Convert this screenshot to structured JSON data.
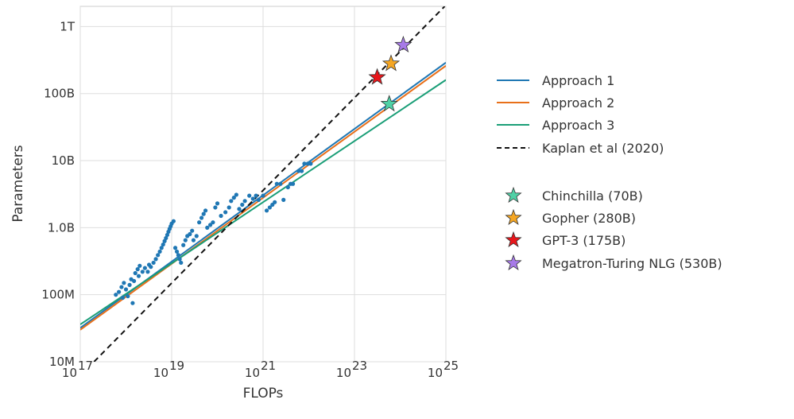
{
  "chart_data": {
    "type": "scatter",
    "xlabel": "FLOPs",
    "ylabel": "Parameters",
    "x_scale": "log",
    "y_scale": "log",
    "xlim": [
      1e+17,
      1e+25
    ],
    "ylim": [
      10000000.0,
      2000000000000.0
    ],
    "grid": true,
    "legend_placement": "right",
    "x_ticks": [
      {
        "value": 1e+17,
        "base": "10",
        "exp": "17"
      },
      {
        "value": 1e+19,
        "base": "10",
        "exp": "19"
      },
      {
        "value": 1e+21,
        "base": "10",
        "exp": "21"
      },
      {
        "value": 1e+23,
        "base": "10",
        "exp": "23"
      },
      {
        "value": 1e+25,
        "base": "10",
        "exp": "25"
      }
    ],
    "y_ticks": [
      {
        "value": 10000000.0,
        "label": "10M"
      },
      {
        "value": 100000000.0,
        "label": "100M"
      },
      {
        "value": 1000000000.0,
        "label": "1.0B"
      },
      {
        "value": 10000000000.0,
        "label": "10B"
      },
      {
        "value": 100000000000.0,
        "label": "100B"
      },
      {
        "value": 1000000000000.0,
        "label": "1T"
      }
    ],
    "lines": [
      {
        "name": "Approach 1",
        "color": "#1f77b4",
        "dash": false,
        "points": [
          [
            1e+17,
            32000000.0
          ],
          [
            1e+25,
            290000000000.0
          ]
        ]
      },
      {
        "name": "Approach 2",
        "color": "#e8701a",
        "dash": false,
        "points": [
          [
            1e+17,
            30000000.0
          ],
          [
            1e+25,
            260000000000.0
          ]
        ]
      },
      {
        "name": "Approach 3",
        "color": "#1a9e77",
        "dash": false,
        "points": [
          [
            1e+17,
            36000000.0
          ],
          [
            1e+25,
            160000000000.0
          ]
        ]
      },
      {
        "name": "Kaplan et al (2020)",
        "color": "#111111",
        "dash": true,
        "points": [
          [
            2e+17,
            10000000.0
          ],
          [
            9.4e+24,
            2000000000000.0
          ]
        ]
      }
    ],
    "points_color": "#1f77b4",
    "points": [
      [
        6e+17,
        100000000.0
      ],
      [
        7e+17,
        110000000.0
      ],
      [
        8e+17,
        130000000.0
      ],
      [
        8.5e+17,
        90000000.0
      ],
      [
        9e+17,
        150000000.0
      ],
      [
        1e+18,
        120000000.0
      ],
      [
        1.1e+18,
        95000000.0
      ],
      [
        1.2e+18,
        140000000.0
      ],
      [
        1.3e+18,
        170000000.0
      ],
      [
        1.4e+18,
        75000000.0
      ],
      [
        1.5e+18,
        160000000.0
      ],
      [
        1.6e+18,
        210000000.0
      ],
      [
        1.8e+18,
        240000000.0
      ],
      [
        1.9e+18,
        190000000.0
      ],
      [
        2e+18,
        270000000.0
      ],
      [
        2.3e+18,
        220000000.0
      ],
      [
        2.6e+18,
        250000000.0
      ],
      [
        3e+18,
        220000000.0
      ],
      [
        3.2e+18,
        280000000.0
      ],
      [
        3.5e+18,
        260000000.0
      ],
      [
        4e+18,
        300000000.0
      ],
      [
        4.5e+18,
        340000000.0
      ],
      [
        5e+18,
        390000000.0
      ],
      [
        5.5e+18,
        440000000.0
      ],
      [
        6e+18,
        500000000.0
      ],
      [
        6.5e+18,
        560000000.0
      ],
      [
        7e+18,
        630000000.0
      ],
      [
        7.5e+18,
        700000000.0
      ],
      [
        8e+18,
        780000000.0
      ],
      [
        8.5e+18,
        870000000.0
      ],
      [
        9e+18,
        960000000.0
      ],
      [
        9.5e+18,
        1050000000.0
      ],
      [
        1e+19,
        1150000000.0
      ],
      [
        1.1e+19,
        1250000000.0
      ],
      [
        1.2e+19,
        500000000.0
      ],
      [
        1.3e+19,
        440000000.0
      ],
      [
        1.4e+19,
        390000000.0
      ],
      [
        1.5e+19,
        340000000.0
      ],
      [
        1.6e+19,
        300000000.0
      ],
      [
        1.8e+19,
        550000000.0
      ],
      [
        2e+19,
        650000000.0
      ],
      [
        2.2e+19,
        750000000.0
      ],
      [
        2.5e+19,
        800000000.0
      ],
      [
        2.8e+19,
        900000000.0
      ],
      [
        3e+19,
        650000000.0
      ],
      [
        3.5e+19,
        750000000.0
      ],
      [
        4e+19,
        1200000000.0
      ],
      [
        4.5e+19,
        1400000000.0
      ],
      [
        5e+19,
        1600000000.0
      ],
      [
        5.5e+19,
        1800000000.0
      ],
      [
        6e+19,
        1000000000.0
      ],
      [
        7e+19,
        1100000000.0
      ],
      [
        8e+19,
        1200000000.0
      ],
      [
        9e+19,
        2000000000.0
      ],
      [
        1e+20,
        2300000000.0
      ],
      [
        1.2e+20,
        1500000000.0
      ],
      [
        1.5e+20,
        1700000000.0
      ],
      [
        1.8e+20,
        2000000000.0
      ],
      [
        2e+20,
        2500000000.0
      ],
      [
        2.3e+20,
        2800000000.0
      ],
      [
        2.6e+20,
        3100000000.0
      ],
      [
        3e+20,
        1900000000.0
      ],
      [
        3.5e+20,
        2200000000.0
      ],
      [
        4e+20,
        2500000000.0
      ],
      [
        5e+20,
        3000000000.0
      ],
      [
        6e+20,
        2700000000.0
      ],
      [
        7e+20,
        3000000000.0
      ],
      [
        8e+20,
        2600000000.0
      ],
      [
        1e+21,
        3000000000.0
      ],
      [
        1.2e+21,
        1800000000.0
      ],
      [
        1.4e+21,
        2000000000.0
      ],
      [
        1.6e+21,
        2200000000.0
      ],
      [
        1.8e+21,
        2400000000.0
      ],
      [
        2e+21,
        4500000000.0
      ],
      [
        2.4e+21,
        4500000000.0
      ],
      [
        2.8e+21,
        2600000000.0
      ],
      [
        3.5e+21,
        4000000000.0
      ],
      [
        4e+21,
        4500000000.0
      ],
      [
        4.5e+21,
        4500000000.0
      ],
      [
        6e+21,
        7000000000.0
      ],
      [
        7e+21,
        7000000000.0
      ],
      [
        8e+21,
        9000000000.0
      ],
      [
        9.5e+21,
        9000000000.0
      ],
      [
        1.1e+22,
        9000000000.0
      ]
    ],
    "stars": [
      {
        "name": "Chinchilla (70B)",
        "x": 5.76e+23,
        "y": 70000000000.0,
        "color": "#4fd1a6"
      },
      {
        "name": "Gopher (280B)",
        "x": 6.31e+23,
        "y": 280000000000.0,
        "color": "#f5a623"
      },
      {
        "name": "GPT-3 (175B)",
        "x": 3.14e+23,
        "y": 175000000000.0,
        "color": "#e8161b"
      },
      {
        "name": "Megatron-Turing NLG (530B)",
        "x": 1.17e+24,
        "y": 530000000000.0,
        "color": "#a77ae8"
      }
    ]
  }
}
